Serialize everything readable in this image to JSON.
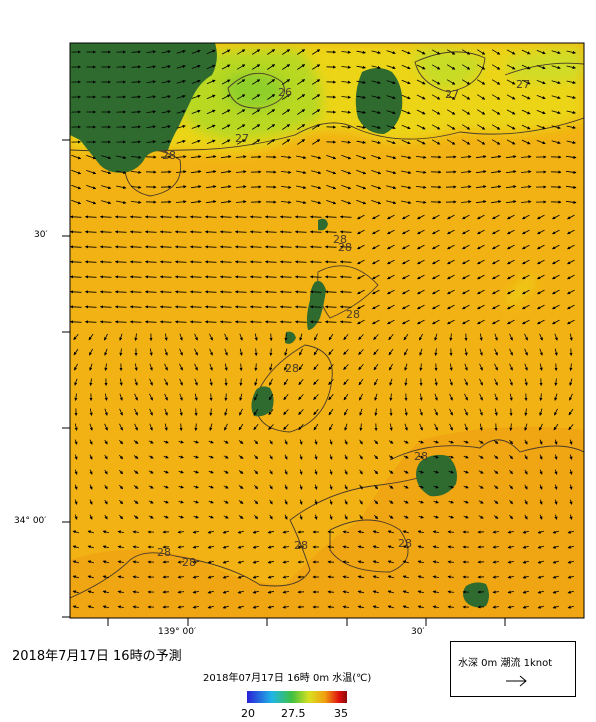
{
  "map": {
    "axis_labels": {
      "lat_30": "30′",
      "lat_34_00": "34° 00′",
      "lon_139_00": "139° 00′",
      "lon_30": "30′"
    },
    "contour_labels": [
      "26",
      "27",
      "27",
      "27",
      "28",
      "28",
      "28",
      "28",
      "28",
      "28",
      "28",
      "28",
      "28",
      "28"
    ],
    "colors": {
      "land": "#2f6b2f",
      "sea_28": "#f2b214",
      "sea_27": "#ecd416",
      "sea_26": "#9dd42a",
      "contour": "#4a3b2a"
    }
  },
  "forecast_title": "2018年7月17日  16時の予測",
  "colorbar": {
    "title": "2018年07月17日 16時 0m 水温(℃)",
    "min": "20",
    "mid": "27.5",
    "max": "35"
  },
  "legend": {
    "text": "水深 0m  潮流 1knot",
    "arrow_icon": "right-arrow-icon"
  }
}
